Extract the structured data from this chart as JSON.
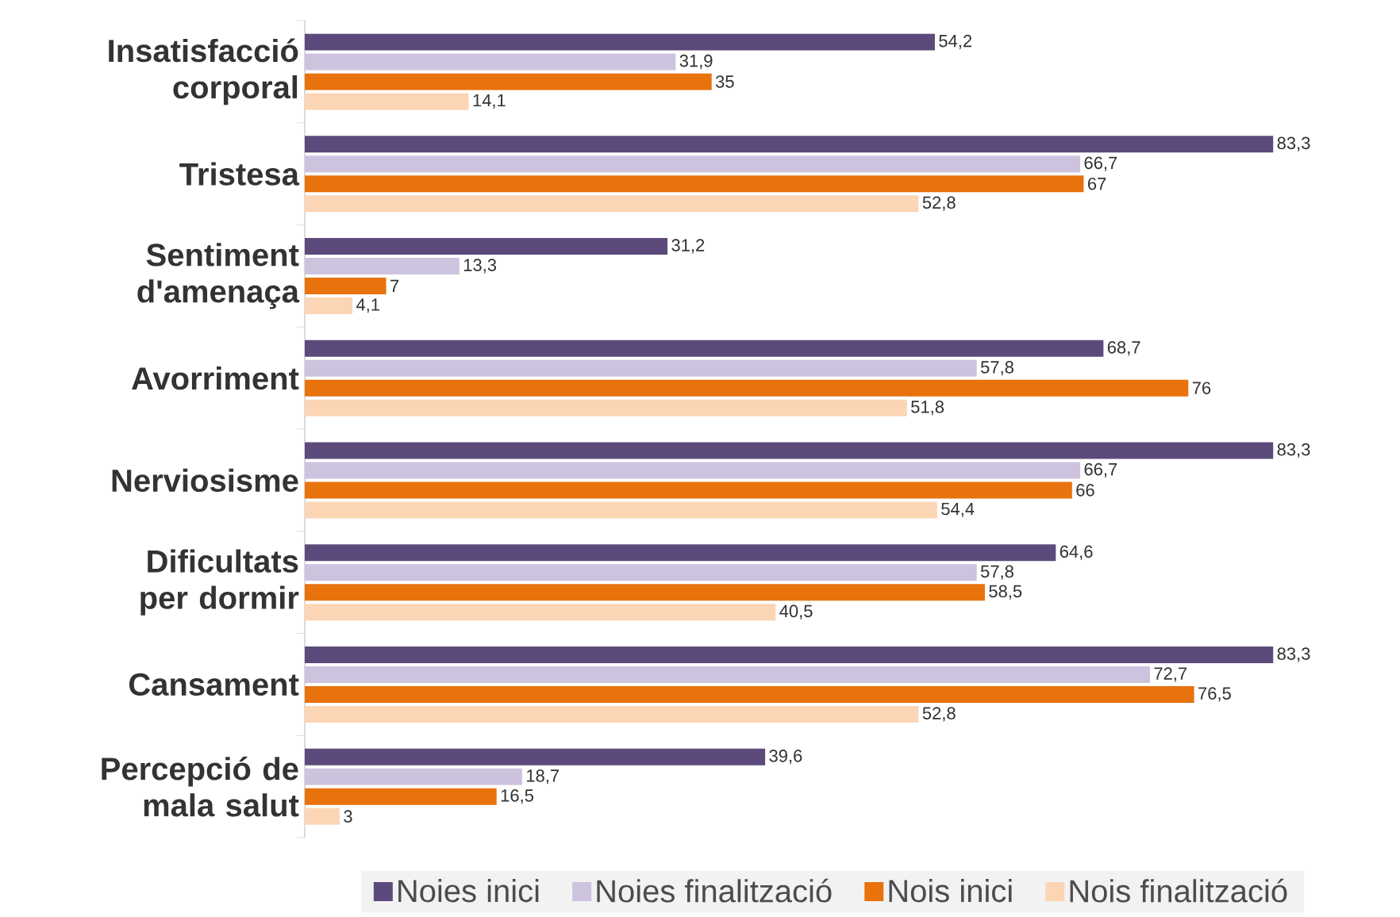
{
  "chart_data": {
    "type": "bar",
    "orientation": "horizontal",
    "categories": [
      "Insatisfacció corporal",
      "Tristesa",
      "Sentiment d'amenaça",
      "Avorriment",
      "Nerviosisme",
      "Dificultats per dormir",
      "Cansament",
      "Percepció de mala salut"
    ],
    "series": [
      {
        "name": "Noies inici",
        "color": "#5b4a7b",
        "values": [
          54.2,
          83.3,
          31.2,
          68.7,
          83.3,
          64.6,
          83.3,
          39.6
        ],
        "value_labels": [
          "54,2",
          "83,3",
          "31,2",
          "68,7",
          "83,3",
          "64,6",
          "83,3",
          "39,6"
        ]
      },
      {
        "name": "Noies finalització",
        "color": "#cdc3df",
        "values": [
          31.9,
          66.7,
          13.3,
          57.8,
          66.7,
          57.8,
          72.7,
          18.7
        ],
        "value_labels": [
          "31,9",
          "66,7",
          "13,3",
          "57,8",
          "66,7",
          "57,8",
          "72,7",
          "18,7"
        ]
      },
      {
        "name": "Nois inici",
        "color": "#e8720c",
        "values": [
          35,
          67,
          7,
          76,
          66,
          58.5,
          76.5,
          16.5
        ],
        "value_labels": [
          "35",
          "67",
          "7",
          "76",
          "66",
          "58,5",
          "76,5",
          "16,5"
        ]
      },
      {
        "name": "Nois finalització",
        "color": "#fcd5b5",
        "values": [
          14.1,
          52.8,
          4.1,
          51.8,
          54.4,
          40.5,
          52.8,
          3
        ],
        "value_labels": [
          "14,1",
          "52,8",
          "4,1",
          "51,8",
          "54,4",
          "40,5",
          "52,8",
          "3"
        ]
      }
    ],
    "legend": "bottom",
    "tick_labels": "y",
    "grid": false
  }
}
